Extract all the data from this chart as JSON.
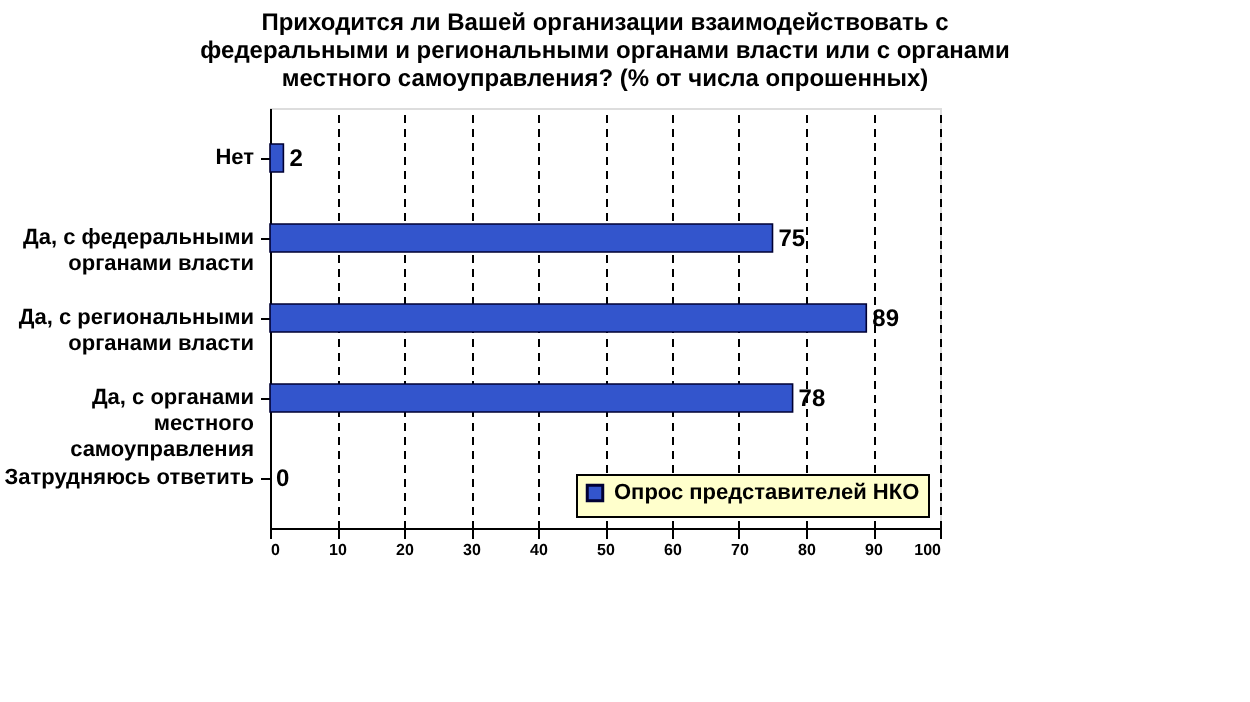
{
  "chart_data": {
    "type": "bar",
    "orientation": "horizontal",
    "title": "Приходится ли Вашей организации взаимодействовать с федеральными и региональными органами власти или с органами местного самоуправления? (% от числа опрошенных)",
    "categories": [
      "Нет",
      "Да, с федеральными органами власти",
      "Да, с региональными органами власти",
      "Да, с органами местного самоуправления",
      "Затрудняюсь ответить"
    ],
    "series": [
      {
        "name": "Опрос представителей НКО",
        "color": "#3355cc",
        "values": [
          2,
          75,
          89,
          78,
          0
        ]
      }
    ],
    "xlim": [
      0,
      100
    ],
    "xticks": [
      0,
      10,
      20,
      30,
      40,
      50,
      60,
      70,
      80,
      90,
      100
    ],
    "grid": "x",
    "legend": "bottom right",
    "data_labels": true
  }
}
